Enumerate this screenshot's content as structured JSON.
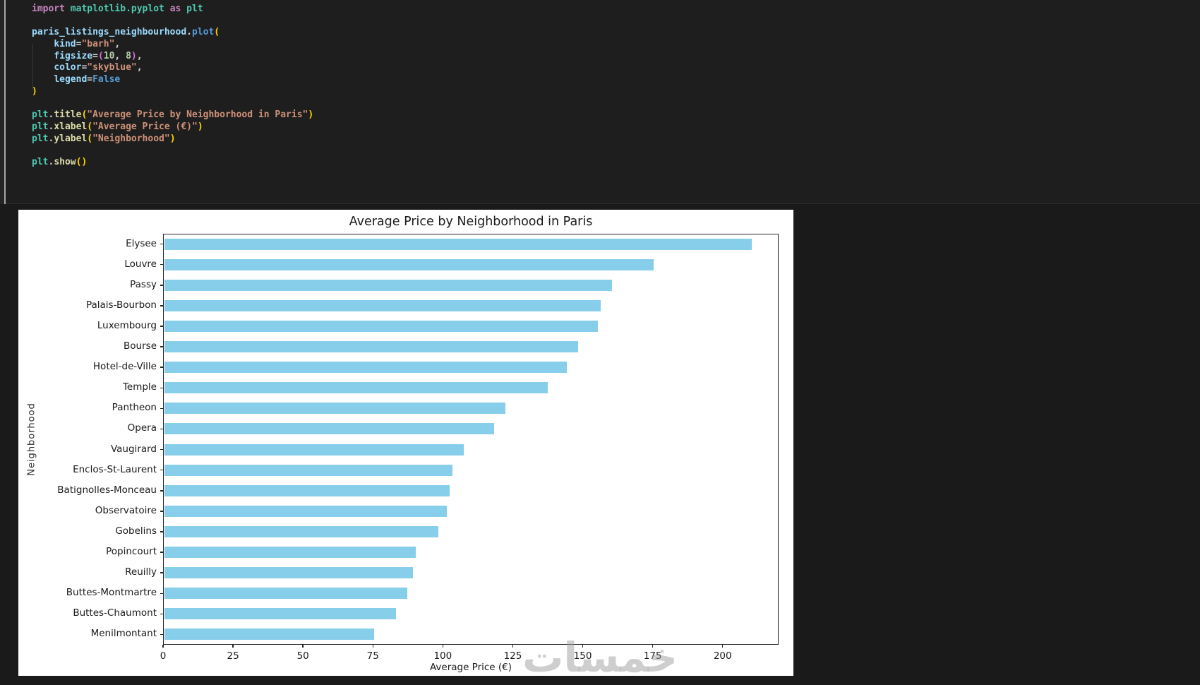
{
  "code": {
    "colors": {
      "kw": "#C586C0",
      "mod": "#4EC9B0",
      "var": "#9CDCFE",
      "param": "#9CDCFE",
      "meth": "#569CD6",
      "fn": "#DCDCAA",
      "str": "#CE9178",
      "num": "#B5CEA8",
      "const": "#569CD6",
      "b1": "#FFD700",
      "b2": "#DA70D6",
      "pl": "#D4D4D4"
    },
    "lines": [
      [
        [
          "kw",
          "import"
        ],
        [
          "pl",
          " "
        ],
        [
          "mod",
          "matplotlib.pyplot"
        ],
        [
          "pl",
          " "
        ],
        [
          "kw",
          "as"
        ],
        [
          "pl",
          " "
        ],
        [
          "mod",
          "plt"
        ]
      ],
      [],
      [
        [
          "var",
          "paris_listings_neighbourhood"
        ],
        [
          "pl",
          "."
        ],
        [
          "meth",
          "plot"
        ],
        [
          "b1",
          "("
        ]
      ],
      [
        [
          "pl",
          "    "
        ],
        [
          "param",
          "kind"
        ],
        [
          "pl",
          "="
        ],
        [
          "str",
          "\"barh\""
        ],
        [
          "pl",
          ","
        ]
      ],
      [
        [
          "pl",
          "    "
        ],
        [
          "param",
          "figsize"
        ],
        [
          "pl",
          "="
        ],
        [
          "b2",
          "("
        ],
        [
          "num",
          "10"
        ],
        [
          "pl",
          ", "
        ],
        [
          "num",
          "8"
        ],
        [
          "b2",
          ")"
        ],
        [
          "pl",
          ","
        ]
      ],
      [
        [
          "pl",
          "    "
        ],
        [
          "param",
          "color"
        ],
        [
          "pl",
          "="
        ],
        [
          "str",
          "\"skyblue\""
        ],
        [
          "pl",
          ","
        ]
      ],
      [
        [
          "pl",
          "    "
        ],
        [
          "param",
          "legend"
        ],
        [
          "pl",
          "="
        ],
        [
          "const",
          "False"
        ]
      ],
      [
        [
          "b1",
          ")"
        ]
      ],
      [],
      [
        [
          "mod",
          "plt"
        ],
        [
          "pl",
          "."
        ],
        [
          "fn",
          "title"
        ],
        [
          "b1",
          "("
        ],
        [
          "str",
          "\"Average Price by Neighborhood in Paris\""
        ],
        [
          "b1",
          ")"
        ]
      ],
      [
        [
          "mod",
          "plt"
        ],
        [
          "pl",
          "."
        ],
        [
          "fn",
          "xlabel"
        ],
        [
          "b1",
          "("
        ],
        [
          "str",
          "\"Average Price (€)\""
        ],
        [
          "b1",
          ")"
        ]
      ],
      [
        [
          "mod",
          "plt"
        ],
        [
          "pl",
          "."
        ],
        [
          "fn",
          "ylabel"
        ],
        [
          "b1",
          "("
        ],
        [
          "str",
          "\"Neighborhood\""
        ],
        [
          "b1",
          ")"
        ]
      ],
      [],
      [
        [
          "mod",
          "plt"
        ],
        [
          "pl",
          "."
        ],
        [
          "fn",
          "show"
        ],
        [
          "b1",
          "("
        ],
        [
          "b1",
          ")"
        ]
      ]
    ]
  },
  "chart_data": {
    "type": "bar",
    "orientation": "horizontal",
    "title": "Average Price by Neighborhood in Paris",
    "xlabel": "Average Price (€)",
    "ylabel": "Neighborhood",
    "categories": [
      "Elysee",
      "Louvre",
      "Passy",
      "Palais-Bourbon",
      "Luxembourg",
      "Bourse",
      "Hotel-de-Ville",
      "Temple",
      "Pantheon",
      "Opera",
      "Vaugirard",
      "Enclos-St-Laurent",
      "Batignolles-Monceau",
      "Observatoire",
      "Gobelins",
      "Popincourt",
      "Reuilly",
      "Buttes-Montmartre",
      "Buttes-Chaumont",
      "Menilmontant"
    ],
    "values": [
      210,
      175,
      160,
      156,
      155,
      148,
      144,
      137,
      122,
      118,
      107,
      103,
      102,
      101,
      98,
      90,
      89,
      87,
      83,
      75
    ],
    "xlim": [
      0,
      220
    ],
    "xticks": [
      0,
      25,
      50,
      75,
      100,
      125,
      150,
      175,
      200
    ],
    "bar_color": "#87CEEB",
    "grid": false,
    "legend": false,
    "background": "#ffffff"
  },
  "watermark": {
    "text": "خمسات"
  }
}
